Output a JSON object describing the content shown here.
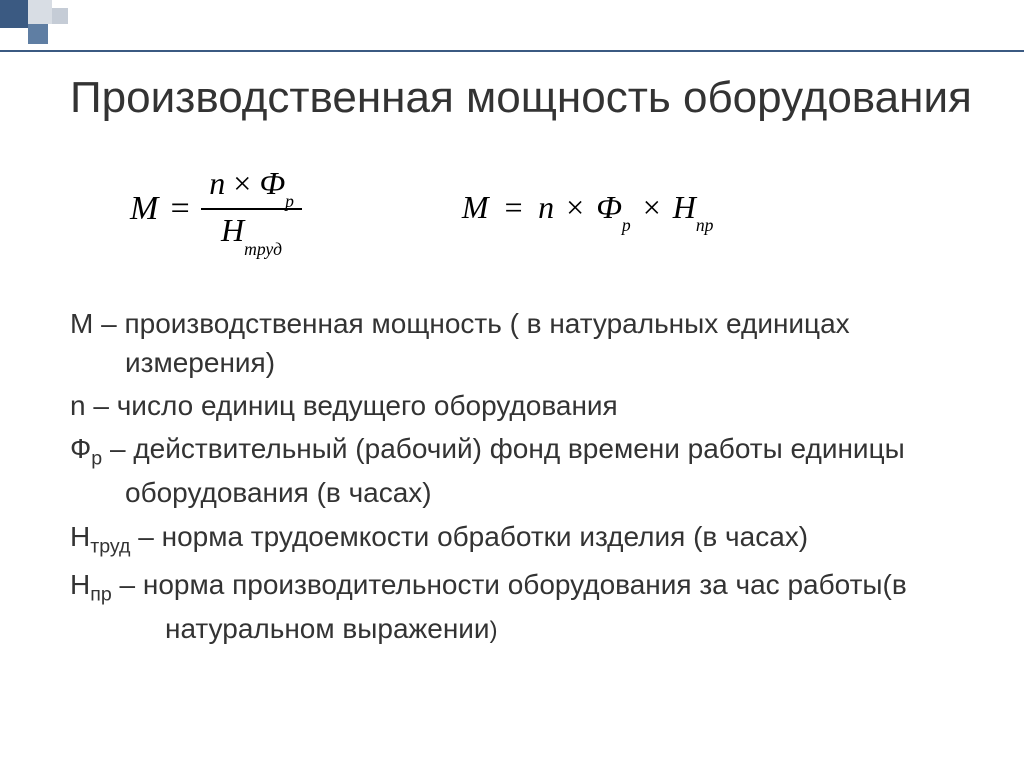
{
  "slide": {
    "title": "Производственная мощность оборудования",
    "formula1": {
      "lhs": "M",
      "eq": "=",
      "num_a": "n",
      "times": "×",
      "num_b": "Ф",
      "num_b_sub": "р",
      "den_a": "Н",
      "den_a_sub": "труд"
    },
    "formula2": {
      "lhs": "M",
      "eq": "=",
      "a": "n",
      "times1": "×",
      "b": "Ф",
      "b_sub": "р",
      "times2": "×",
      "c": "Н",
      "c_sub": "пр"
    },
    "defs": [
      {
        "sym": "М",
        "text": " – производственная мощность ( в натуральных единицах измерения)"
      },
      {
        "sym": "n",
        "text": " – число единиц ведущего оборудования"
      },
      {
        "sym": "Ф",
        "sub": "р",
        "text": " – действительный (рабочий) фонд времени работы единицы оборудования (в часах)"
      },
      {
        "sym": "Н",
        "sub": "труд",
        "text": " – норма трудоемкости обработки изделия (в часах)"
      },
      {
        "sym": "Н",
        "sub": "пр",
        "text": " – норма производительности оборудования за час работы(в натуральном выражении",
        "tail": ")"
      }
    ]
  },
  "style": {
    "accent_dark": "#3b5a82",
    "accent_mid": "#5f7ea3",
    "accent_light1": "#d8dde4",
    "accent_light2": "#c5ccd6",
    "text_color": "#333333",
    "bg": "#ffffff",
    "title_fontsize": 44,
    "body_fontsize": 28,
    "formula_fontsize": 34
  }
}
